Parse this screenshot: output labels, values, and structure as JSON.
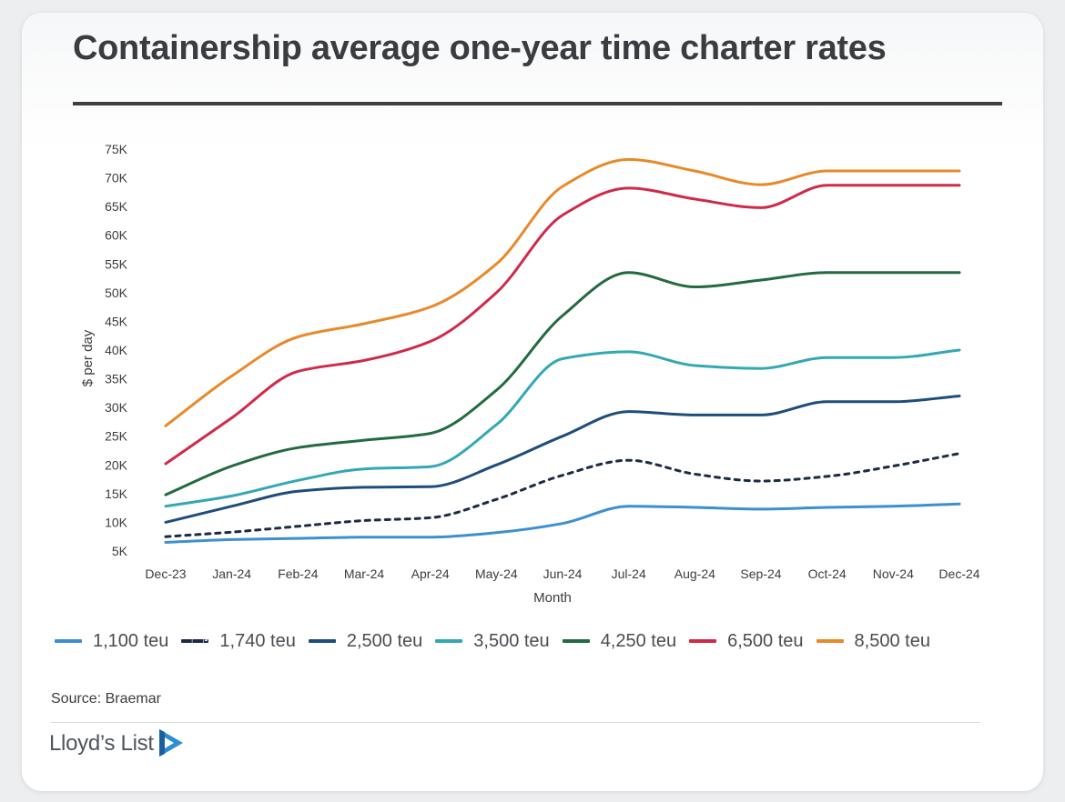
{
  "page": {
    "title": "Containership average one-year time charter rates",
    "source": "Source: Braemar",
    "brand": "Lloyd’s List"
  },
  "chart_data": {
    "type": "line",
    "title": "Containership average one-year time charter rates",
    "xlabel": "Month",
    "ylabel": "$ per day",
    "ylim": [
      5000,
      75000
    ],
    "yticks": [
      5000,
      10000,
      15000,
      20000,
      25000,
      30000,
      35000,
      40000,
      45000,
      50000,
      55000,
      60000,
      65000,
      70000,
      75000
    ],
    "ytick_labels": [
      "5K",
      "10K",
      "15K",
      "20K",
      "25K",
      "30K",
      "35K",
      "40K",
      "45K",
      "50K",
      "55K",
      "60K",
      "65K",
      "70K",
      "75K"
    ],
    "categories": [
      "Dec-23",
      "Jan-24",
      "Feb-24",
      "Mar-24",
      "Apr-24",
      "May-24",
      "Jun-24",
      "Jul-24",
      "Aug-24",
      "Sep-24",
      "Oct-24",
      "Nov-24",
      "Dec-24"
    ],
    "legend_position": "bottom",
    "grid": false,
    "series": [
      {
        "name": "1,100 teu",
        "color": "#3d8fd1",
        "dashed": false,
        "values": [
          6500,
          7000,
          7200,
          7400,
          7400,
          8200,
          9800,
          12800,
          12600,
          12300,
          12600,
          12800,
          13200
        ]
      },
      {
        "name": "1,740 teu",
        "color": "#1c2b45",
        "dashed": true,
        "values": [
          7500,
          8300,
          9300,
          10300,
          10800,
          14000,
          18200,
          20800,
          18400,
          17200,
          18000,
          19800,
          22000
        ]
      },
      {
        "name": "2,500 teu",
        "color": "#1e4d7b",
        "dashed": false,
        "values": [
          10000,
          12800,
          15400,
          16100,
          16200,
          20000,
          25000,
          29300,
          28700,
          28700,
          31000,
          31000,
          32000
        ]
      },
      {
        "name": "3,500 teu",
        "color": "#33a8b5",
        "dashed": false,
        "values": [
          12800,
          14600,
          17300,
          19300,
          19700,
          27000,
          38500,
          39700,
          37300,
          36800,
          38700,
          38700,
          40000
        ]
      },
      {
        "name": "4,250 teu",
        "color": "#216b3f",
        "dashed": false,
        "values": [
          14800,
          19800,
          23000,
          24300,
          25500,
          33000,
          46000,
          53500,
          51000,
          52200,
          53500,
          53500,
          53500
        ]
      },
      {
        "name": "6,500 teu",
        "color": "#cf2a48",
        "dashed": false,
        "values": [
          20200,
          28200,
          36300,
          38200,
          41500,
          50000,
          63500,
          68200,
          66300,
          64800,
          68700,
          68700,
          68700
        ]
      },
      {
        "name": "8,500 teu",
        "color": "#e8892a",
        "dashed": false,
        "values": [
          26800,
          35500,
          42300,
          44600,
          47500,
          55000,
          68500,
          73200,
          71200,
          68800,
          71200,
          71200,
          71200
        ]
      }
    ]
  }
}
